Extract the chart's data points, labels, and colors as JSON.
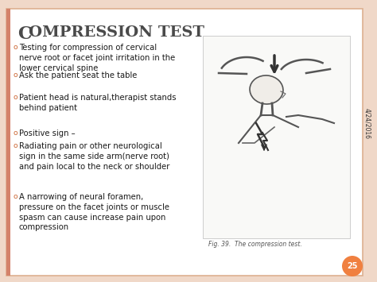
{
  "title_C": "C",
  "title_rest": "OMPRESSION TEST",
  "title_color": "#4a4a4a",
  "background_color": "#ffffff",
  "outer_bg": "#f0d8c8",
  "left_strip_color": "#d4826a",
  "bullet_color": "#cc6633",
  "date_text": "4/24/2016",
  "page_number": "25",
  "page_circle_color": "#f08040",
  "bullet_points": [
    "Testing for compression of cervical\nnerve root or facet joint irritation in the\nlower cervical spine",
    "Ask the patient seat the table",
    "Patient head is natural,therapist stands\nbehind patient"
  ],
  "positive_points": [
    "Positive sign –",
    "Radiating pain or other neurological\nsign in the same side arm(nerve root)\nand pain local to the neck or shoulder",
    "A narrowing of neural foramen,\npressure on the facet joints or muscle\nspasm can cause increase pain upon\ncompression"
  ],
  "fig_caption": "Fig. 39.  The compression test.",
  "font_size_title": 14,
  "font_size_body": 7.2,
  "font_size_date": 5.5,
  "font_size_fig": 5.5,
  "font_size_page": 7
}
